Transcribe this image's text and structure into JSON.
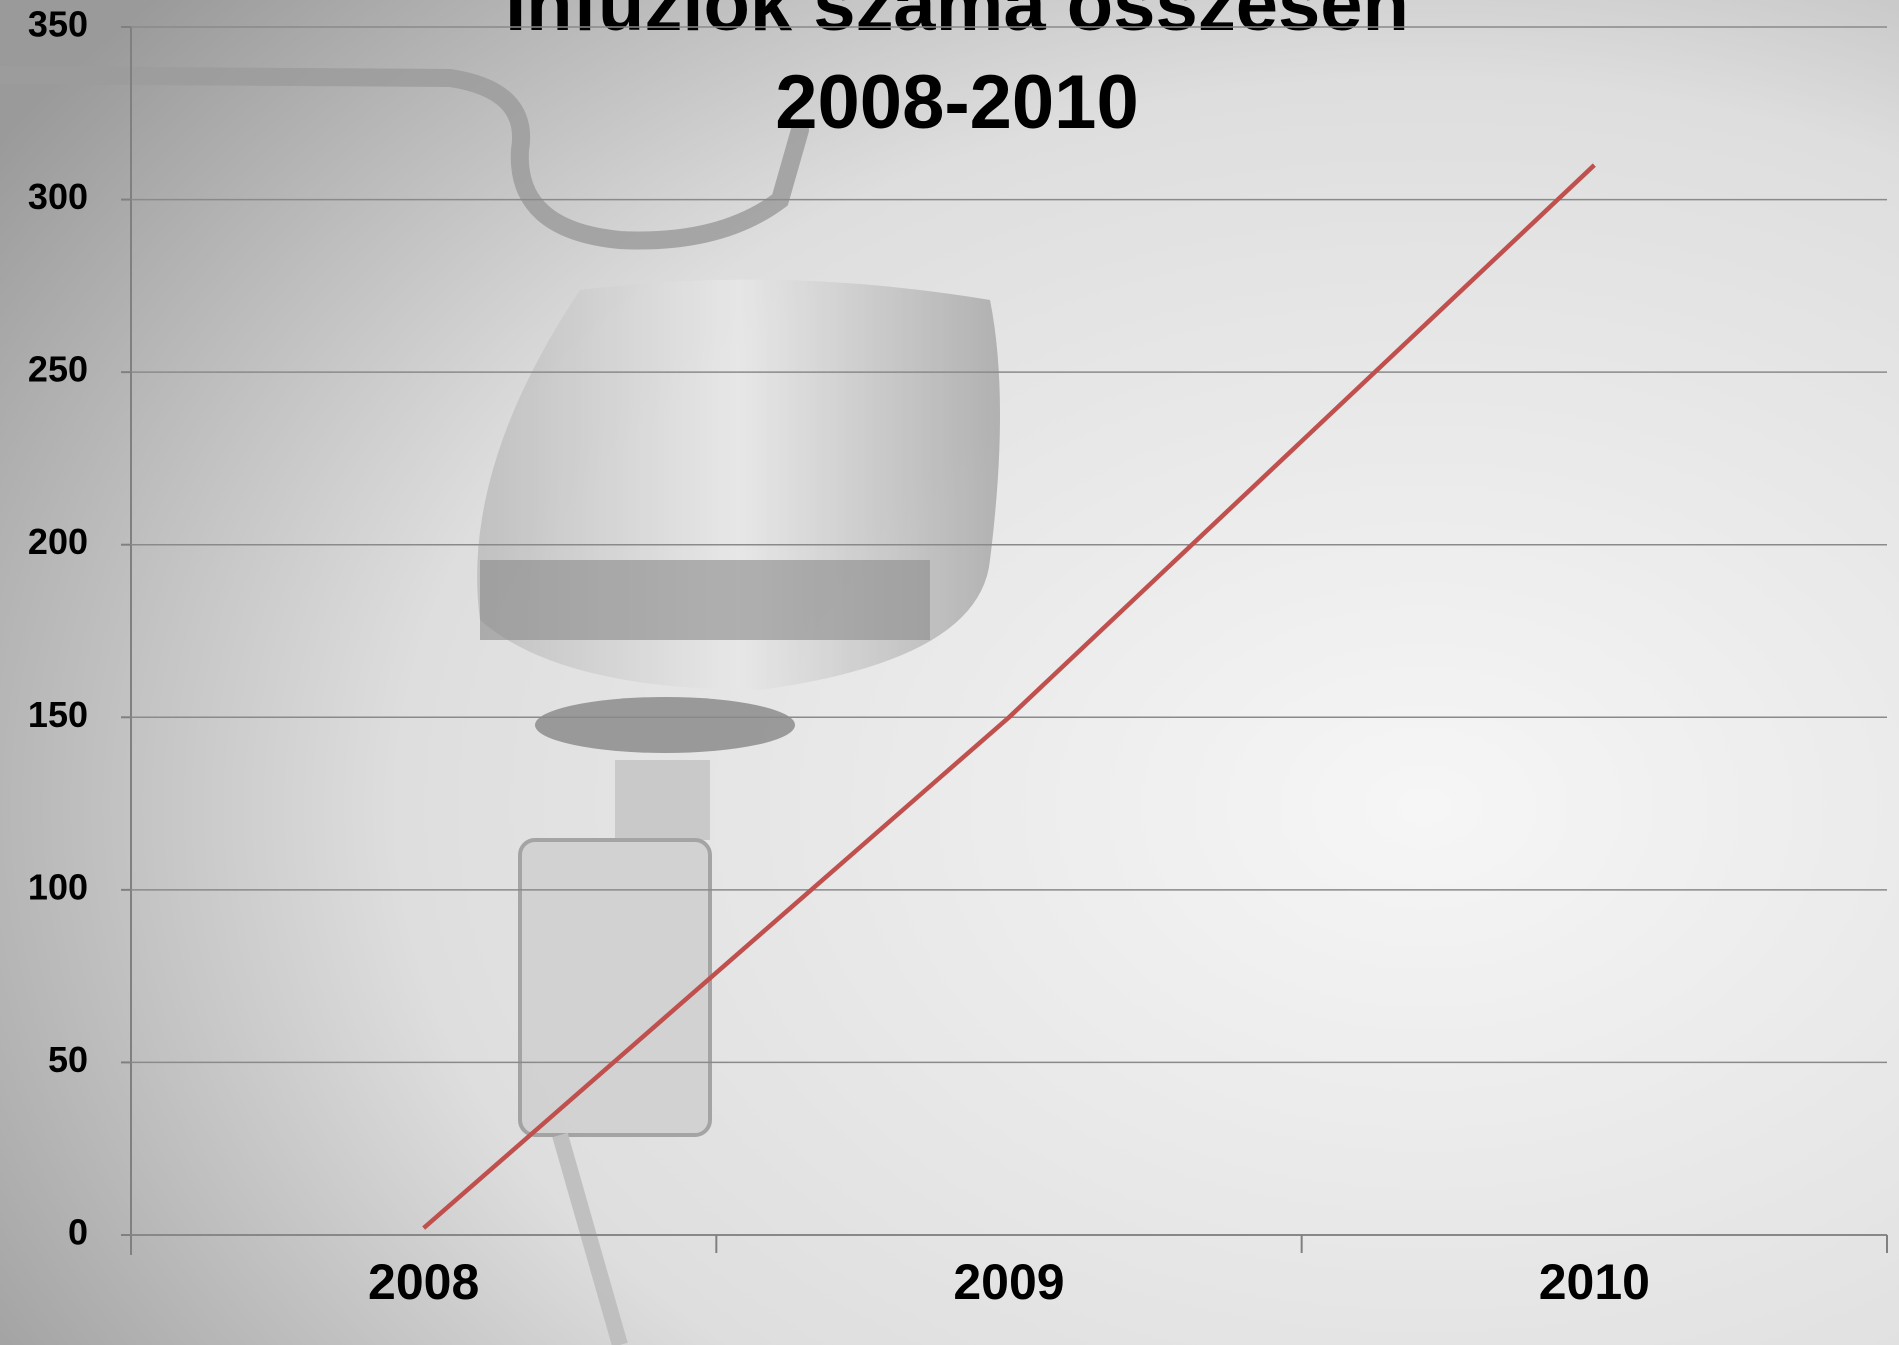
{
  "chart_data": {
    "type": "line",
    "title": [
      "Infúziók száma összesen",
      "2008-2010"
    ],
    "categories": [
      "2008",
      "2009",
      "2010"
    ],
    "series": [
      {
        "name": null,
        "color": "#c0504d",
        "values": [
          2,
          150,
          310
        ]
      }
    ],
    "ylim": [
      0,
      350
    ],
    "yticks": [
      0,
      50,
      100,
      150,
      200,
      250,
      300,
      350
    ],
    "grid": true
  }
}
